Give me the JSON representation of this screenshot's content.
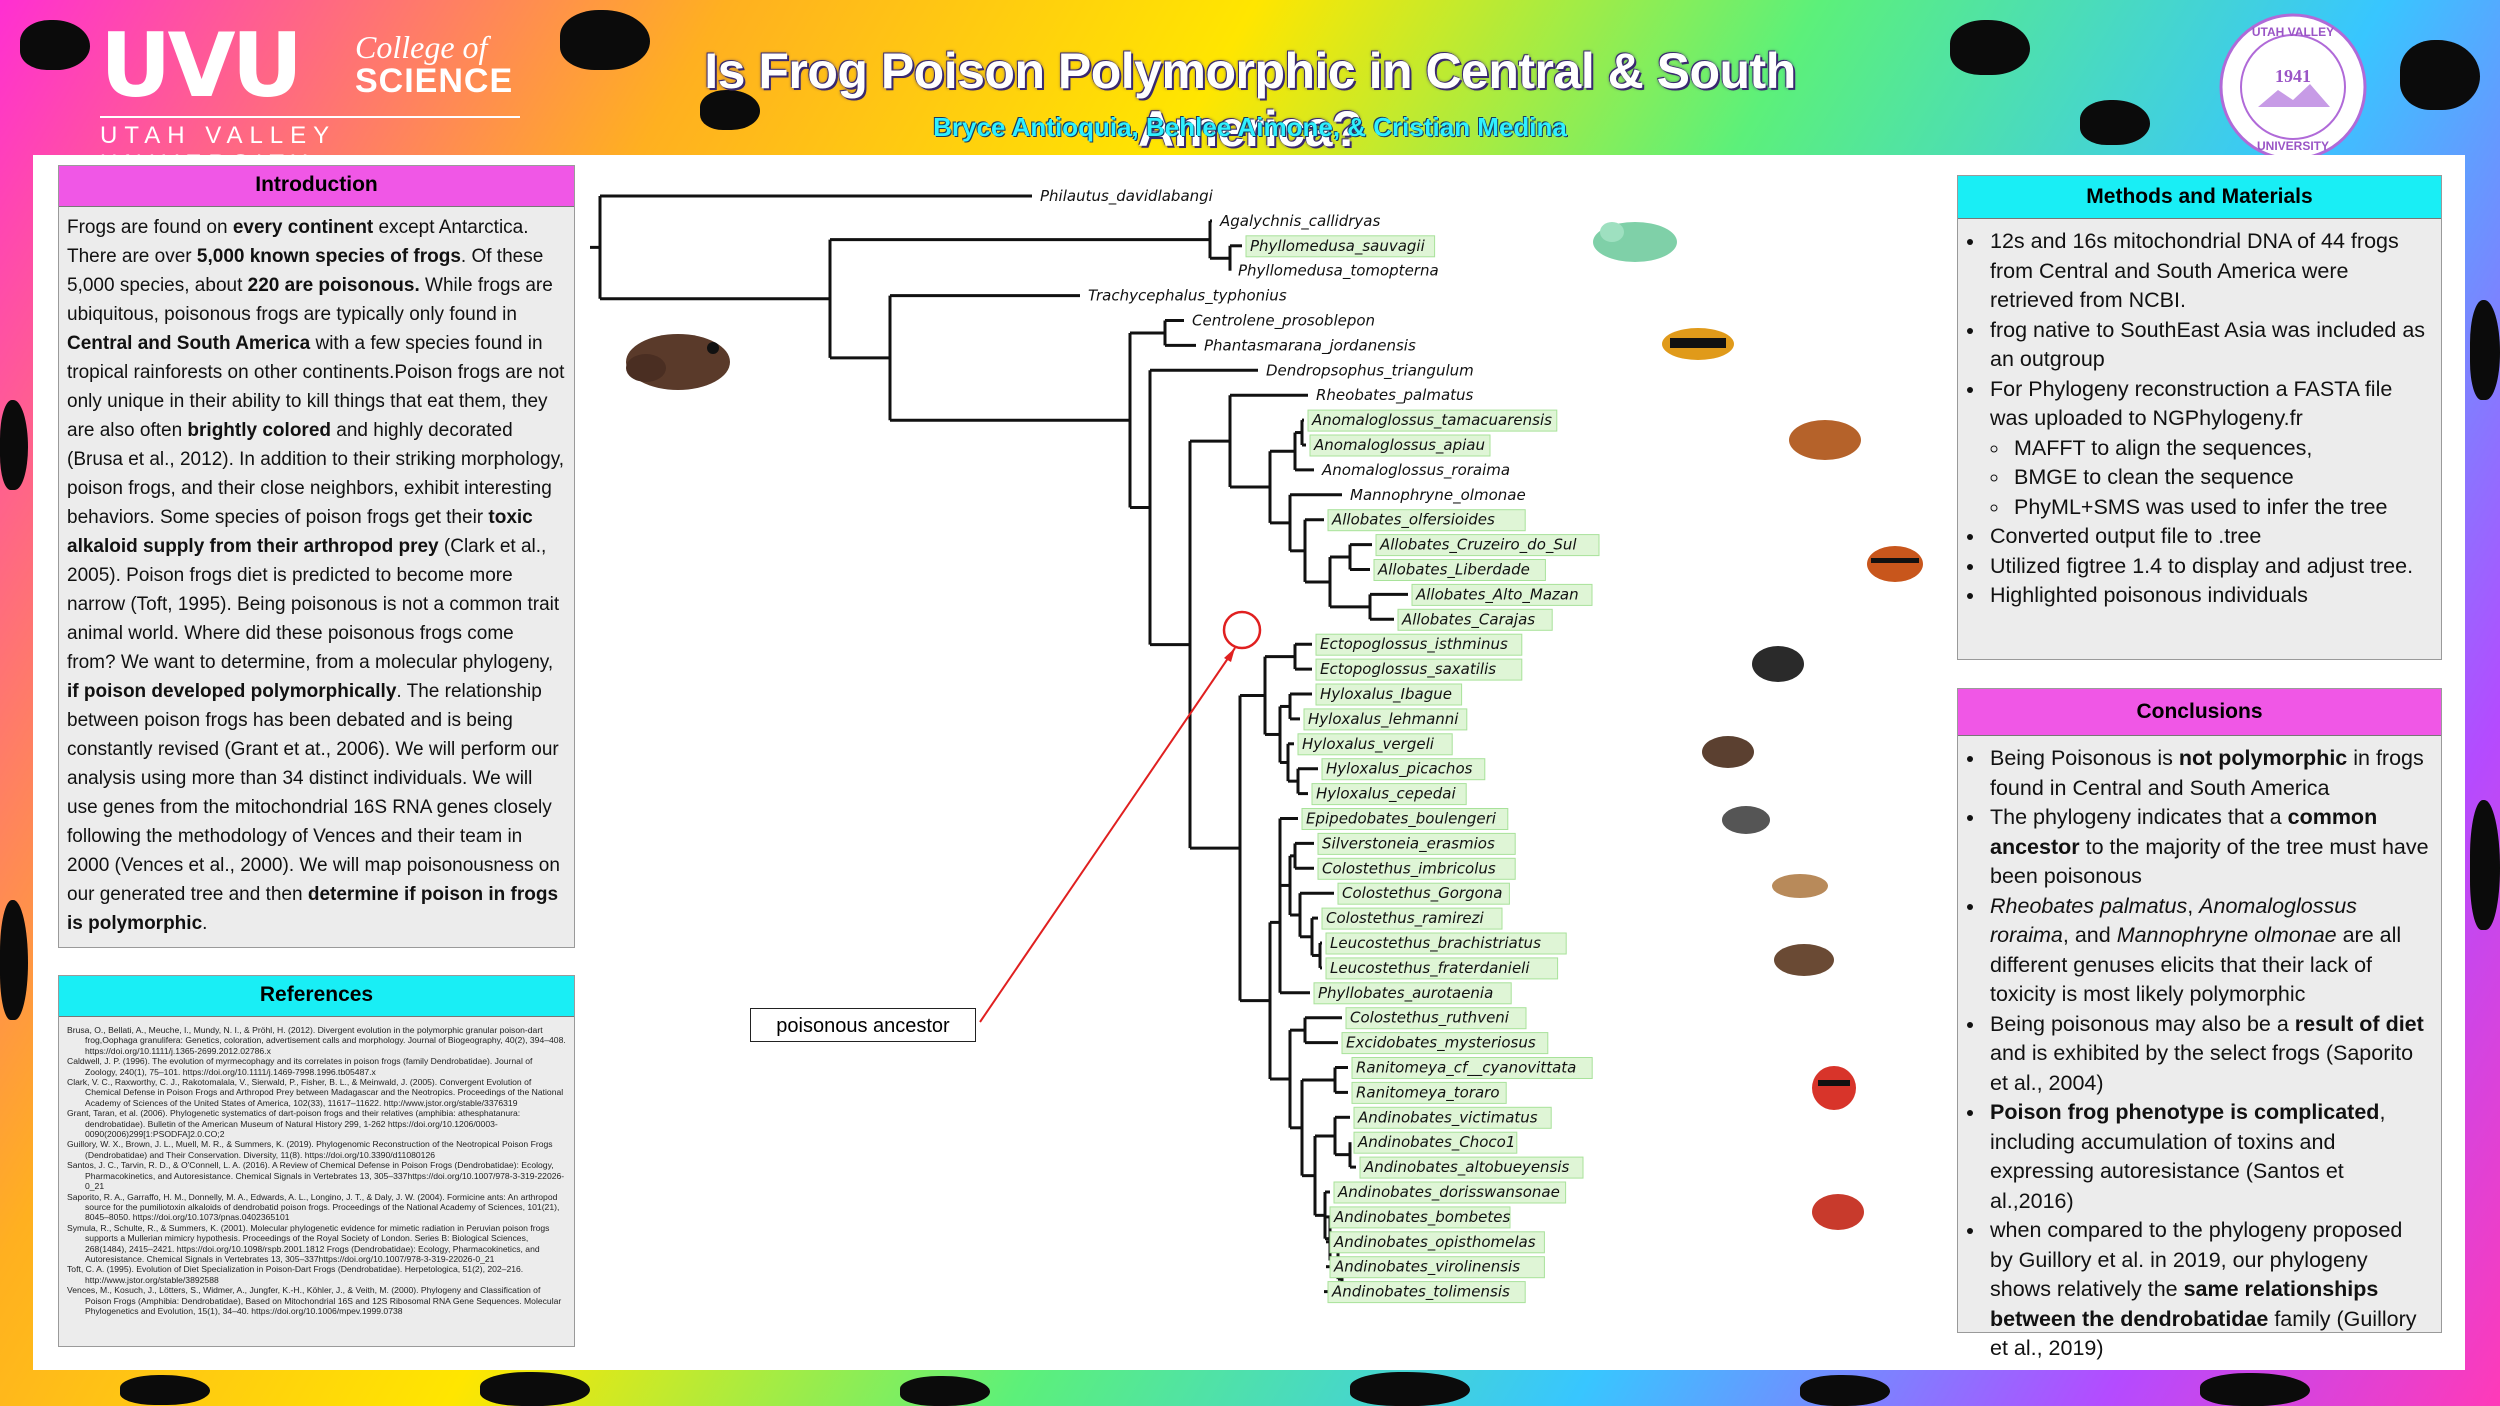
{
  "header": {
    "title": "Is Frog Poison Polymorphic in Central & South America?",
    "authors": "Bryce Antioquia, Behlee Aimone, & Cristian Medina",
    "logo_big": "UVU",
    "logo_college_line1": "College of",
    "logo_college_line2": "SCIENCE",
    "logo_university": "UTAH VALLEY UNIVERSITY",
    "seal_top": "UTAH VALLEY",
    "seal_year": "1941",
    "seal_bottom": "UNIVERSITY"
  },
  "colors": {
    "magenta": "#f057e6",
    "cyan": "#19eef5",
    "highlight": "#dff5d6",
    "callout_line": "#e02020"
  },
  "introduction": {
    "heading": "Introduction",
    "segments": [
      {
        "t": "Frogs are found on "
      },
      {
        "b": "every continent"
      },
      {
        "t": " except Antarctica. There are over "
      },
      {
        "b": "5,000 known species of frogs"
      },
      {
        "t": ". Of these 5,000 species, about "
      },
      {
        "b": "220 are poisonous."
      },
      {
        "t": " While frogs are ubiquitous, poisonous frogs are typically only found in "
      },
      {
        "b": "Central and South America"
      },
      {
        "t": " with a few species found in tropical rainforests on other continents.Poison frogs are not only unique in their ability to kill things that eat them, they are also often "
      },
      {
        "b": "brightly colored"
      },
      {
        "t": " and highly decorated (Brusa et al., 2012). In addition to their striking morphology, poison frogs, and their close neighbors, exhibit interesting behaviors. Some species of poison frogs get their "
      },
      {
        "b": "toxic alkaloid supply from their arthropod prey"
      },
      {
        "t": " (Clark et al., 2005). Poison frogs diet is predicted to become more narrow (Toft, 1995). Being poisonous is not a common trait animal world. Where did these poisonous frogs come from? We want to determine, from a molecular phylogeny, "
      },
      {
        "b": "if poison developed polymorphically"
      },
      {
        "t": ". The relationship between poison frogs has been debated and is being constantly revised (Grant et at., 2006). We will perform our analysis using more than 34 distinct individuals. We will use genes from the mitochondrial 16S RNA genes closely following the methodology of Vences and their team in 2000 (Vences et al., 2000). We will map poisonousness on our generated tree and then "
      },
      {
        "b": "determine if poison in frogs is polymorphic"
      },
      {
        "t": "."
      }
    ]
  },
  "references": {
    "heading": "References",
    "items": [
      "Brusa, O., Bellati, A., Meuche, I., Mundy, N. I., & Pröhl, H. (2012). Divergent evolution in the polymorphic granular poison-dart frog,Oophaga granulifera: Genetics, coloration, advertisement calls and morphology. Journal of Biogeography, 40(2), 394–408. https://doi.org/10.1111/j.1365-2699.2012.02786.x",
      "Caldwell, J. P. (1996). The evolution of myrmecophagy and its correlates in poison frogs (family Dendrobatidae). Journal of Zoology, 240(1), 75–101. https://doi.org/10.1111/j.1469-7998.1996.tb05487.x",
      "Clark, V. C., Raxworthy, C. J., Rakotomalala, V., Sierwald, P., Fisher, B. L., & Meinwald, J. (2005). Convergent Evolution of Chemical Defense in Poison Frogs and Arthropod Prey between Madagascar and the Neotropics. Proceedings of the National Academy of Sciences of the United States of America, 102(33), 11617–11622. http://www.jstor.org/stable/3376319",
      "Grant, Taran, et al. (2006). Phylogenetic systematics of dart-poison frogs and their relatives (amphibia: athesphatanura: dendrobatidae). Bulletin of the American Museum of Natural History 299, 1-262 https://doi.org/10.1206/0003-0090(2006)299[1:PSODFA]2.0.CO;2",
      "Guillory, W. X., Brown, J. L., Muell, M. R., & Summers, K. (2019). Phylogenomic Reconstruction of the Neotropical Poison Frogs (Dendrobatidae) and Their Conservation. Diversity, 11(8). https://doi.org/10.3390/d11080126",
      "Santos, J. C., Tarvin, R. D., & O'Connell, L. A. (2016). A Review of Chemical Defense in Poison Frogs (Dendrobatidae): Ecology, Pharmacokinetics, and Autoresistance. Chemical Signals in Vertebrates 13, 305–337https://doi.org/10.1007/978-3-319-22026-0_21",
      "Saporito, R. A., Garraffo, H. M., Donnelly, M. A., Edwards, A. L., Longino, J. T., & Daly, J. W. (2004). Formicine ants: An arthropod source for the pumiliotoxin alkaloids of dendrobatid poison frogs. Proceedings of the National Academy of Sciences, 101(21), 8045–8050. https://doi.org/10.1073/pnas.0402365101",
      "Symula, R., Schulte, R., & Summers, K. (2001). Molecular phylogenetic evidence for mimetic radiation in Peruvian poison frogs supports a Mullerian mimicry hypothesis. Proceedings of the Royal Society of London. Series B: Biological Sciences, 268(1484), 2415–2421. https://doi.org/10.1098/rspb.2001.1812 Frogs (Dendrobatidae): Ecology, Pharmacokinetics, and Autoresistance. Chemical Signals in Vertebrates 13, 305–337https://doi.org/10.1007/978-3-319-22026-0_21",
      "Toft, C. A. (1995). Evolution of Diet Specialization in Poison-Dart Frogs (Dendrobatidae). Herpetologica, 51(2), 202–216. http://www.jstor.org/stable/3892588",
      "Vences, M., Kosuch, J., Lötters, S., Widmer, A., Jungfer, K.-H., Köhler, J., & Veith, M. (2000). Phylogeny and Classification of Poison Frogs (Amphibia: Dendrobatidae), Based on Mitochondrial 16S and 12S Ribosomal RNA Gene Sequences. Molecular Phylogenetics and Evolution, 15(1), 34–40. https://doi.org/10.1006/mpev.1999.0738"
    ]
  },
  "methods": {
    "heading": "Methods and Materials",
    "items": [
      {
        "text": "12s and 16s mitochondrial DNA of 44 frogs from Central and South America were retrieved from NCBI.",
        "sub": false
      },
      {
        "text": "frog native to SouthEast Asia was included as an outgroup",
        "sub": false
      },
      {
        "text": "For Phylogeny reconstruction a FASTA file was uploaded to NGPhylogeny.fr",
        "sub": false
      },
      {
        "text": "MAFFT to align the sequences,",
        "sub": true
      },
      {
        "text": "BMGE to clean the sequence",
        "sub": true
      },
      {
        "text": "PhyML+SMS was used to infer the tree",
        "sub": true
      },
      {
        "text": "Converted output file to .tree",
        "sub": false
      },
      {
        "text": "Utilized figtree 1.4 to display and adjust tree.",
        "sub": false
      },
      {
        "text": "Highlighted poisonous individuals",
        "sub": false
      }
    ]
  },
  "conclusions": {
    "heading": "Conclusions",
    "items": [
      [
        {
          "t": "Being Poisonous is "
        },
        {
          "b": "not polymorphic"
        },
        {
          "t": " in frogs found in Central and South America"
        }
      ],
      [
        {
          "t": "The phylogeny indicates that a "
        },
        {
          "b": "common ancestor"
        },
        {
          "t": " to the majority of the tree must have been poisonous"
        }
      ],
      [
        {
          "i": "Rheobates palmatus"
        },
        {
          "t": ", "
        },
        {
          "i": "Anomaloglossus roraima"
        },
        {
          "t": ", and "
        },
        {
          "i": "Mannophryne olmonae"
        },
        {
          "t": " are all different genuses elicits that their lack of toxicity is most likely polymorphic"
        }
      ],
      [
        {
          "t": "Being poisonous may also be a "
        },
        {
          "b": "result of diet"
        },
        {
          "t": " and is exhibited by the select frogs (Saporito et al., 2004)"
        }
      ],
      [
        {
          "b": "Poison frog phenotype is complicated"
        },
        {
          "t": ", including accumulation of toxins and expressing autoresistance (Santos et al.,2016)"
        }
      ],
      [
        {
          "t": "when compared to the phylogeny proposed by Guillory et al. in 2019, our phylogeny shows relatively the "
        },
        {
          "b": "same relationships between the dendrobatidae"
        },
        {
          "t": " family (Guillory et al., 2019)"
        }
      ]
    ]
  },
  "tree": {
    "callout_label": "poisonous ancestor",
    "taxa": [
      {
        "name": "Philautus_davidlabangi",
        "poison": false
      },
      {
        "name": "Agalychnis_callidryas",
        "poison": false
      },
      {
        "name": "Phyllomedusa_sauvagii",
        "poison": true
      },
      {
        "name": "Phyllomedusa_tomopterna",
        "poison": false
      },
      {
        "name": "Trachycephalus_typhonius",
        "poison": false
      },
      {
        "name": "Centrolene_prosoblepon",
        "poison": false
      },
      {
        "name": "Phantasmarana_jordanensis",
        "poison": false
      },
      {
        "name": "Dendropsophus_triangulum",
        "poison": false
      },
      {
        "name": "Rheobates_palmatus",
        "poison": false
      },
      {
        "name": "Anomaloglossus_tamacuarensis",
        "poison": true
      },
      {
        "name": "Anomaloglossus_apiau",
        "poison": true
      },
      {
        "name": "Anomaloglossus_roraima",
        "poison": false
      },
      {
        "name": "Mannophryne_olmonae",
        "poison": false
      },
      {
        "name": "Allobates_olfersioides",
        "poison": true
      },
      {
        "name": "Allobates_Cruzeiro_do_Sul",
        "poison": true
      },
      {
        "name": "Allobates_Liberdade",
        "poison": true
      },
      {
        "name": "Allobates_Alto_Mazan",
        "poison": true
      },
      {
        "name": "Allobates_Carajas",
        "poison": true
      },
      {
        "name": "Ectopoglossus_isthminus",
        "poison": true
      },
      {
        "name": "Ectopoglossus_saxatilis",
        "poison": true
      },
      {
        "name": "Hyloxalus_Ibague",
        "poison": true
      },
      {
        "name": "Hyloxalus_lehmanni",
        "poison": true
      },
      {
        "name": "Hyloxalus_vergeli",
        "poison": true
      },
      {
        "name": "Hyloxalus_picachos",
        "poison": true
      },
      {
        "name": "Hyloxalus_cepedai",
        "poison": true
      },
      {
        "name": "Epipedobates_boulengeri",
        "poison": true
      },
      {
        "name": "Silverstoneia_erasmios",
        "poison": true
      },
      {
        "name": "Colostethus_imbricolus",
        "poison": true
      },
      {
        "name": "Colostethus_Gorgona",
        "poison": true
      },
      {
        "name": "Colostethus_ramirezi",
        "poison": true
      },
      {
        "name": "Leucostethus_brachistriatus",
        "poison": true
      },
      {
        "name": "Leucostethus_fraterdanieli",
        "poison": true
      },
      {
        "name": "Phyllobates_aurotaenia",
        "poison": true
      },
      {
        "name": "Colostethus_ruthveni",
        "poison": true
      },
      {
        "name": "Excidobates_mysteriosus",
        "poison": true
      },
      {
        "name": "Ranitomeya_cf__cyanovittata",
        "poison": true
      },
      {
        "name": "Ranitomeya_toraro",
        "poison": true
      },
      {
        "name": "Andinobates_victimatus",
        "poison": true
      },
      {
        "name": "Andinobates_Choco1",
        "poison": true
      },
      {
        "name": "Andinobates_altobueyensis",
        "poison": true
      },
      {
        "name": "Andinobates_dorisswansonae",
        "poison": true
      },
      {
        "name": "Andinobates_bombetes",
        "poison": true
      },
      {
        "name": "Andinobates_opisthomelas",
        "poison": true
      },
      {
        "name": "Andinobates_virolinensis",
        "poison": true
      },
      {
        "name": "Andinobates_tolimensis",
        "poison": true
      }
    ]
  }
}
